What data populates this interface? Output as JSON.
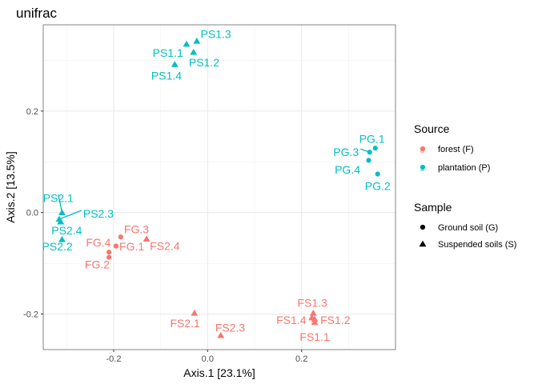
{
  "chart_data": {
    "type": "scatter",
    "title": "unifrac",
    "xlabel": "Axis.1   [23.1%]",
    "ylabel": "Axis.2   [13.5%]",
    "xlim": [
      -0.35,
      0.4
    ],
    "ylim": [
      -0.27,
      0.37
    ],
    "xticks": [
      -0.2,
      0.0,
      0.2
    ],
    "xtick_labels": [
      "-0.2",
      "0.0",
      "0.2"
    ],
    "yticks": [
      -0.2,
      0.0,
      0.2
    ],
    "ytick_labels": [
      "-0.2",
      "0.0",
      "0.2"
    ],
    "grid": true,
    "legend_position": "right",
    "colors": {
      "forest": "#F8766D",
      "plantation": "#00BFC4"
    },
    "legend": {
      "color_title": "Source",
      "color_items": [
        {
          "label": "forest (F)",
          "key": "forest"
        },
        {
          "label": "plantation (P)",
          "key": "plantation"
        }
      ],
      "shape_title": "Sample",
      "shape_items": [
        {
          "label": "Ground soil (G)",
          "shape": "circle"
        },
        {
          "label": "Suspended soils (S)",
          "shape": "triangle"
        }
      ]
    },
    "points": [
      {
        "label": "PS1.3",
        "x": -0.023,
        "y": 0.338,
        "source": "plantation",
        "shape": "triangle",
        "lx": -0.015,
        "ly": 0.352,
        "anchor": "start"
      },
      {
        "label": "PS1.1",
        "x": -0.045,
        "y": 0.332,
        "source": "plantation",
        "shape": "triangle",
        "lx": -0.052,
        "ly": 0.315,
        "anchor": "end"
      },
      {
        "label": "PS1.2",
        "x": -0.03,
        "y": 0.316,
        "source": "plantation",
        "shape": "triangle",
        "lx": -0.04,
        "ly": 0.296,
        "anchor": "start"
      },
      {
        "label": "PS1.4",
        "x": -0.07,
        "y": 0.292,
        "source": "plantation",
        "shape": "triangle",
        "lx": -0.055,
        "ly": 0.27,
        "anchor": "end"
      },
      {
        "label": "PG.1",
        "x": 0.357,
        "y": 0.127,
        "source": "plantation",
        "shape": "circle",
        "lx": 0.35,
        "ly": 0.145,
        "anchor": "middle"
      },
      {
        "label": "PG.3",
        "x": 0.345,
        "y": 0.119,
        "source": "plantation",
        "shape": "circle",
        "lx": 0.322,
        "ly": 0.119,
        "anchor": "end",
        "leader": true
      },
      {
        "label": "PG.4",
        "x": 0.343,
        "y": 0.103,
        "source": "plantation",
        "shape": "circle",
        "lx": 0.325,
        "ly": 0.085,
        "anchor": "end"
      },
      {
        "label": "PG.2",
        "x": 0.362,
        "y": 0.076,
        "source": "plantation",
        "shape": "circle",
        "lx": 0.362,
        "ly": 0.052,
        "anchor": "middle"
      },
      {
        "label": "PS2.1",
        "x": -0.31,
        "y": 0.0,
        "source": "plantation",
        "shape": "triangle",
        "lx": -0.318,
        "ly": 0.029,
        "anchor": "middle",
        "leader": true
      },
      {
        "label": "PS2.3",
        "x": -0.316,
        "y": -0.013,
        "source": "plantation",
        "shape": "triangle",
        "lx": -0.265,
        "ly": -0.002,
        "anchor": "start",
        "leader": true
      },
      {
        "label": "PS2.4",
        "x": -0.313,
        "y": -0.018,
        "source": "plantation",
        "shape": "triangle",
        "lx": -0.3,
        "ly": -0.035,
        "anchor": "middle"
      },
      {
        "label": "PS2.2",
        "x": -0.31,
        "y": -0.053,
        "source": "plantation",
        "shape": "triangle",
        "lx": -0.32,
        "ly": -0.067,
        "anchor": "middle"
      },
      {
        "label": "FG.3",
        "x": -0.185,
        "y": -0.048,
        "source": "forest",
        "shape": "circle",
        "lx": -0.178,
        "ly": -0.033,
        "anchor": "start"
      },
      {
        "label": "FS2.4",
        "x": -0.13,
        "y": -0.052,
        "source": "forest",
        "shape": "triangle",
        "lx": -0.123,
        "ly": -0.066,
        "anchor": "start"
      },
      {
        "label": "FG.4",
        "x": -0.21,
        "y": -0.078,
        "source": "forest",
        "shape": "circle",
        "lx": -0.206,
        "ly": -0.059,
        "anchor": "end"
      },
      {
        "label": "FG.1",
        "x": -0.195,
        "y": -0.066,
        "source": "forest",
        "shape": "circle",
        "lx": -0.188,
        "ly": -0.067,
        "anchor": "start"
      },
      {
        "label": "FG.2",
        "x": -0.21,
        "y": -0.088,
        "source": "forest",
        "shape": "circle",
        "lx": -0.235,
        "ly": -0.102,
        "anchor": "middle"
      },
      {
        "label": "FS2.1",
        "x": -0.028,
        "y": -0.198,
        "source": "forest",
        "shape": "triangle",
        "lx": -0.048,
        "ly": -0.218,
        "anchor": "middle"
      },
      {
        "label": "FS2.3",
        "x": 0.028,
        "y": -0.242,
        "source": "forest",
        "shape": "triangle",
        "lx": 0.048,
        "ly": -0.227,
        "anchor": "middle"
      },
      {
        "label": "FS1.3",
        "x": 0.225,
        "y": -0.198,
        "source": "forest",
        "shape": "triangle",
        "lx": 0.223,
        "ly": -0.178,
        "anchor": "middle"
      },
      {
        "label": "FS1.4",
        "x": 0.222,
        "y": -0.207,
        "source": "forest",
        "shape": "triangle",
        "lx": 0.21,
        "ly": -0.212,
        "anchor": "end"
      },
      {
        "label": "FS1.2",
        "x": 0.228,
        "y": -0.21,
        "source": "forest",
        "shape": "triangle",
        "lx": 0.24,
        "ly": -0.212,
        "anchor": "start"
      },
      {
        "label": "FS1.1",
        "x": 0.228,
        "y": -0.216,
        "source": "forest",
        "shape": "triangle",
        "lx": 0.228,
        "ly": -0.245,
        "anchor": "middle"
      }
    ]
  }
}
